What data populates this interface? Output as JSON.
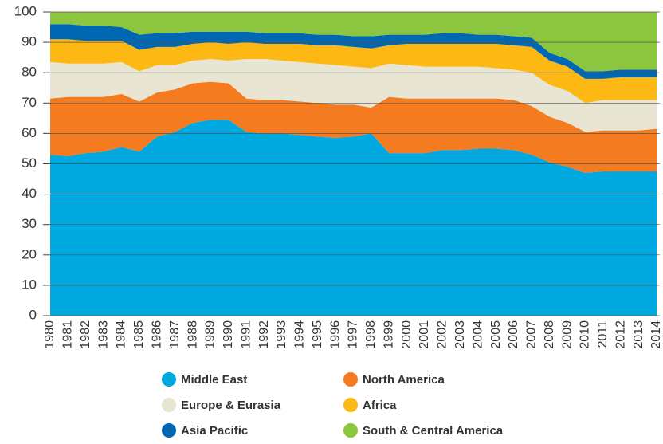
{
  "chart_data": {
    "type": "stacked_area",
    "categories": [
      "1980",
      "1981",
      "1982",
      "1983",
      "1984",
      "1985",
      "1986",
      "1987",
      "1988",
      "1989",
      "1990",
      "1991",
      "1992",
      "1993",
      "1994",
      "1995",
      "1996",
      "1997",
      "1998",
      "1999",
      "2000",
      "2001",
      "2002",
      "2003",
      "2004",
      "2005",
      "2006",
      "2007",
      "2008",
      "2009",
      "2010",
      "2011",
      "2012",
      "2013",
      "2014"
    ],
    "series": [
      {
        "name": "Middle East",
        "color": "#00a9e0",
        "values": [
          53,
          52.5,
          53.5,
          54,
          55.5,
          54,
          59,
          60.5,
          63.5,
          64.5,
          64.5,
          60.5,
          60,
          60,
          59.5,
          59,
          58.5,
          59,
          60,
          53.5,
          53.5,
          53.5,
          54.5,
          54.5,
          55,
          55,
          54.5,
          53,
          50.5,
          49,
          47,
          47.5,
          47.5,
          47.5,
          47.5
        ]
      },
      {
        "name": "North America",
        "color": "#f47b20",
        "values": [
          18.5,
          19.5,
          18.5,
          18,
          17.5,
          16.5,
          14.5,
          14,
          13,
          12.5,
          12,
          11,
          11,
          11,
          11,
          11,
          11,
          10.5,
          8.5,
          18.5,
          18,
          18,
          17,
          17,
          16.5,
          16.5,
          16.5,
          16,
          15,
          14.5,
          13.5,
          13.5,
          13.5,
          13.5,
          14
        ]
      },
      {
        "name": "Europe & Eurasia",
        "color": "#e8e5d3",
        "values": [
          12,
          11,
          11,
          11,
          10.5,
          10,
          9,
          8,
          7.5,
          7.5,
          7.5,
          13,
          13.5,
          13,
          13,
          13,
          13,
          12.5,
          13,
          11,
          11,
          10.5,
          10.5,
          10.5,
          10.5,
          10,
          10,
          11,
          10.5,
          10.5,
          9.5,
          10,
          10,
          10,
          9.5
        ]
      },
      {
        "name": "Africa",
        "color": "#fdb813",
        "values": [
          7.5,
          8,
          7.5,
          7.5,
          7,
          7,
          6,
          6,
          5.5,
          5.5,
          5.5,
          5.5,
          5,
          5.5,
          6,
          6,
          6.5,
          6.5,
          6.5,
          6,
          7,
          7.5,
          7.5,
          7.5,
          7.5,
          8,
          8,
          8.5,
          8,
          8,
          8,
          7,
          7.5,
          7.5,
          7.5
        ]
      },
      {
        "name": "Asia Pacific",
        "color": "#0068b3",
        "values": [
          5,
          5,
          5,
          5,
          4.5,
          5,
          4.5,
          4.5,
          4,
          3.5,
          4,
          3.5,
          3.5,
          3.5,
          3.5,
          3.5,
          3.5,
          3.5,
          4,
          3.5,
          3,
          3,
          3.5,
          3.5,
          3,
          3,
          3,
          3,
          2.5,
          2.5,
          2.5,
          2.5,
          2.5,
          2.5,
          2.5
        ]
      },
      {
        "name": "South & Central America",
        "color": "#8cc63f",
        "values": [
          4,
          4,
          4.5,
          4.5,
          5,
          7.5,
          7,
          7,
          6.5,
          6.5,
          6.5,
          6.5,
          7,
          7,
          7,
          7.5,
          7.5,
          8,
          8,
          7.5,
          7.5,
          7.5,
          7,
          7,
          7.5,
          7.5,
          8,
          8.5,
          13.5,
          15.5,
          19.5,
          19.5,
          19,
          19,
          19
        ]
      }
    ],
    "ylim": [
      0,
      100
    ],
    "yticks": [
      0,
      10,
      20,
      30,
      40,
      50,
      60,
      70,
      80,
      90,
      100
    ],
    "grid": true
  }
}
